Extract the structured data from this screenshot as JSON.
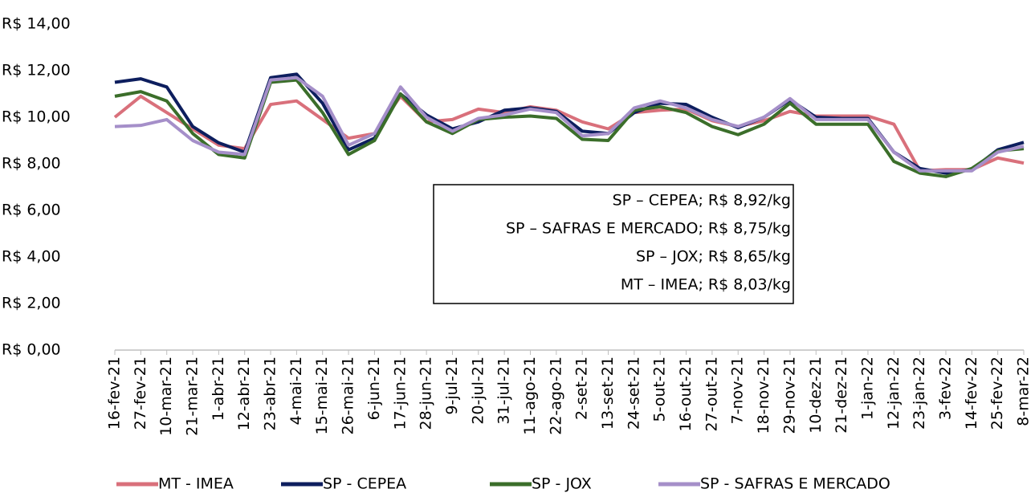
{
  "chart_data": {
    "type": "line",
    "categories": [
      "16-fev-21",
      "27-fev-21",
      "10-mar-21",
      "21-mar-21",
      "1-abr-21",
      "12-abr-21",
      "23-abr-21",
      "4-mai-21",
      "15-mai-21",
      "26-mai-21",
      "6-jun-21",
      "17-jun-21",
      "28-jun-21",
      "9-jul-21",
      "20-jul-21",
      "31-jul-21",
      "11-ago-21",
      "22-ago-21",
      "2-set-21",
      "13-set-21",
      "24-set-21",
      "5-out-21",
      "16-out-21",
      "27-out-21",
      "7-nov-21",
      "18-nov-21",
      "29-nov-21",
      "10-dez-21",
      "21-dez-21",
      "1-jan-22",
      "12-jan-22",
      "23-jan-22",
      "3-fev-22",
      "14-fev-22",
      "25-fev-22",
      "8-mar-22"
    ],
    "series": [
      {
        "name": "MT - IMEA",
        "color": "#d9707b",
        "values": [
          10.0,
          10.9,
          10.2,
          9.5,
          8.8,
          8.65,
          10.55,
          10.7,
          9.9,
          9.1,
          9.3,
          10.9,
          9.8,
          9.9,
          10.35,
          10.2,
          10.45,
          10.3,
          9.8,
          9.5,
          10.2,
          10.3,
          10.35,
          9.85,
          9.6,
          9.85,
          10.25,
          10.05,
          10.05,
          10.05,
          9.7,
          7.7,
          7.75,
          7.75,
          8.25,
          8.03
        ]
      },
      {
        "name": "SP - CEPEA",
        "color": "#0d1e5e",
        "values": [
          11.5,
          11.65,
          11.3,
          9.6,
          8.9,
          8.5,
          11.7,
          11.85,
          10.6,
          8.6,
          9.1,
          11.0,
          10.1,
          9.5,
          9.8,
          10.3,
          10.4,
          10.25,
          9.4,
          9.3,
          10.2,
          10.6,
          10.55,
          10.0,
          9.55,
          10.0,
          10.75,
          10.0,
          9.95,
          9.95,
          8.5,
          7.8,
          7.6,
          7.75,
          8.6,
          8.92
        ]
      },
      {
        "name": "SP - JOX",
        "color": "#3b6e2a",
        "values": [
          10.9,
          11.1,
          10.7,
          9.3,
          8.4,
          8.25,
          11.5,
          11.6,
          10.2,
          8.4,
          9.0,
          11.0,
          9.8,
          9.3,
          9.9,
          10.0,
          10.05,
          9.95,
          9.05,
          9.0,
          10.3,
          10.45,
          10.2,
          9.6,
          9.25,
          9.7,
          10.6,
          9.7,
          9.7,
          9.7,
          8.1,
          7.6,
          7.45,
          7.8,
          8.55,
          8.65
        ]
      },
      {
        "name": "SP - SAFRAS E MERCADO",
        "color": "#a58fc9",
        "values": [
          9.6,
          9.65,
          9.9,
          9.0,
          8.5,
          8.4,
          11.6,
          11.7,
          10.9,
          8.8,
          9.3,
          11.3,
          10.0,
          9.4,
          9.95,
          10.1,
          10.35,
          10.2,
          9.2,
          9.3,
          10.4,
          10.7,
          10.4,
          9.9,
          9.6,
          10.0,
          10.8,
          9.9,
          9.9,
          9.9,
          8.5,
          7.7,
          7.7,
          7.7,
          8.5,
          8.75
        ]
      }
    ],
    "ylim": [
      0,
      14
    ],
    "yticks": [
      {
        "value": 0,
        "label": "R$ 0,00"
      },
      {
        "value": 2,
        "label": "R$ 2,00"
      },
      {
        "value": 4,
        "label": "R$ 4,00"
      },
      {
        "value": 6,
        "label": "R$ 6,00"
      },
      {
        "value": 8,
        "label": "R$ 8,00"
      },
      {
        "value": 10,
        "label": "R$ 10,00"
      },
      {
        "value": 12,
        "label": "R$ 12,00"
      },
      {
        "value": 14,
        "label": "R$ 14,00"
      }
    ],
    "grid": false,
    "legend": "bottom",
    "annotations": [
      "SP – CEPEA; R$ 8,92/kg",
      "SP – SAFRAS E MERCADO; R$ 8,75/kg",
      "SP – JOX; R$ 8,65/kg",
      "MT – IMEA; R$ 8,03/kg"
    ]
  }
}
